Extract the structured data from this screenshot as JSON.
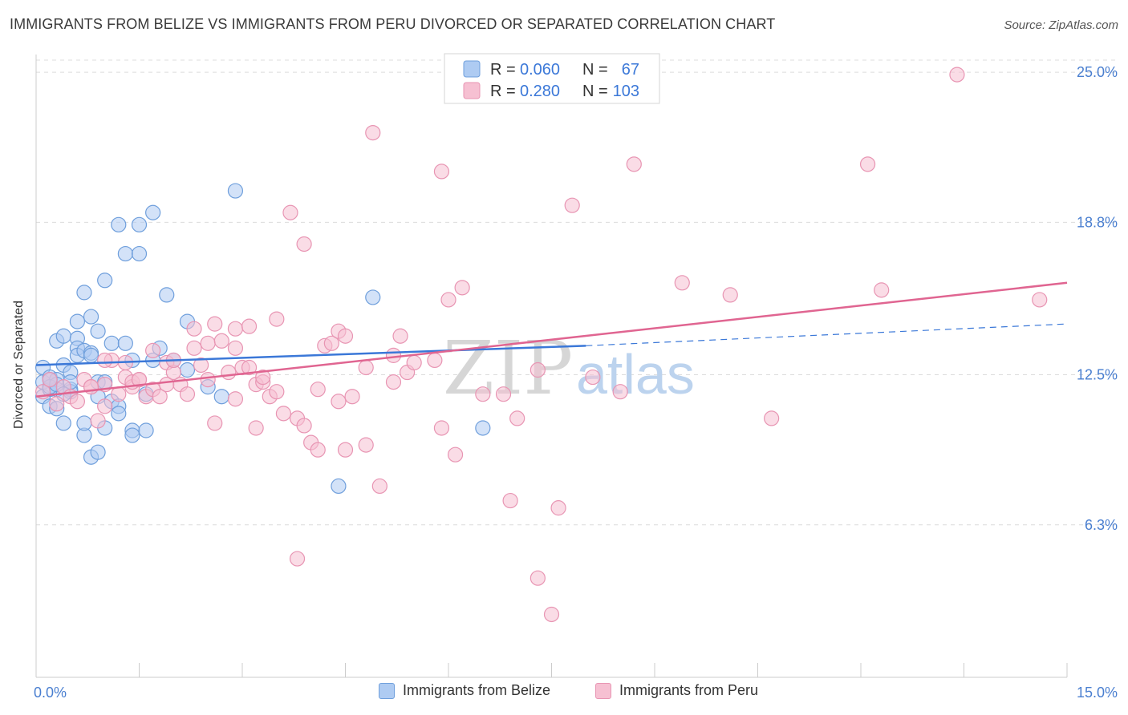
{
  "title": "IMMIGRANTS FROM BELIZE VS IMMIGRANTS FROM PERU DIVORCED OR SEPARATED CORRELATION CHART",
  "source": "Source: ZipAtlas.com",
  "watermark": {
    "zip": "ZIP",
    "atlas": "atlas"
  },
  "colors": {
    "belize_fill": "#aecbf2",
    "belize_stroke": "#6f9fdc",
    "belize_line": "#3b78d8",
    "peru_fill": "#f6c0d2",
    "peru_stroke": "#e895b3",
    "peru_line": "#e06591",
    "axis_text": "#4a7fd0",
    "grid": "#dcdcdc"
  },
  "legend_stats": [
    {
      "r_label": "R = ",
      "r_value": "0.060",
      "n_label": "N = ",
      "n_value": "67"
    },
    {
      "r_label": "R = ",
      "r_value": "0.280",
      "n_label": "N = ",
      "n_value": "103"
    }
  ],
  "chart_data": {
    "type": "scatter",
    "xlabel": "",
    "ylabel": "Divorced or Separated",
    "xlim": [
      0,
      15
    ],
    "ylim": [
      0,
      25.5
    ],
    "x_tick_labels": [
      "0.0%",
      "15.0%"
    ],
    "y_ticks": [
      6.3,
      12.5,
      18.8,
      25.0
    ],
    "y_tick_labels": [
      "6.3%",
      "12.5%",
      "18.8%",
      "25.0%"
    ],
    "grid": "horizontal dashed",
    "legend_position": "top-center",
    "series": [
      {
        "name": "Immigrants from Belize",
        "trend": {
          "x": [
            0,
            8.0
          ],
          "y": [
            12.9,
            13.7
          ],
          "dashed_to": [
            15.0,
            14.6
          ]
        },
        "points": [
          [
            0.1,
            12.8
          ],
          [
            0.1,
            12.2
          ],
          [
            0.1,
            11.6
          ],
          [
            0.2,
            11.9
          ],
          [
            0.2,
            12.4
          ],
          [
            0.2,
            11.2
          ],
          [
            0.3,
            12.3
          ],
          [
            0.3,
            11.9
          ],
          [
            0.3,
            13.9
          ],
          [
            0.3,
            11.1
          ],
          [
            0.4,
            12.9
          ],
          [
            0.4,
            14.1
          ],
          [
            0.4,
            10.5
          ],
          [
            0.5,
            12.6
          ],
          [
            0.5,
            11.9
          ],
          [
            0.5,
            11.8
          ],
          [
            0.6,
            14.0
          ],
          [
            0.6,
            13.6
          ],
          [
            0.6,
            13.3
          ],
          [
            0.6,
            14.7
          ],
          [
            0.7,
            15.9
          ],
          [
            0.7,
            13.5
          ],
          [
            0.7,
            10.0
          ],
          [
            0.7,
            10.5
          ],
          [
            0.8,
            13.4
          ],
          [
            0.8,
            13.3
          ],
          [
            0.8,
            14.9
          ],
          [
            0.8,
            9.1
          ],
          [
            0.9,
            9.3
          ],
          [
            0.9,
            12.2
          ],
          [
            0.9,
            11.6
          ],
          [
            0.9,
            14.3
          ],
          [
            1.0,
            12.2
          ],
          [
            1.0,
            16.4
          ],
          [
            1.0,
            10.3
          ],
          [
            1.1,
            13.8
          ],
          [
            1.1,
            11.4
          ],
          [
            1.2,
            11.2
          ],
          [
            1.2,
            10.9
          ],
          [
            1.3,
            13.8
          ],
          [
            1.3,
            17.5
          ],
          [
            1.2,
            18.7
          ],
          [
            1.4,
            10.2
          ],
          [
            1.4,
            13.1
          ],
          [
            1.4,
            10.0
          ],
          [
            1.5,
            17.5
          ],
          [
            1.5,
            18.7
          ],
          [
            1.6,
            11.7
          ],
          [
            1.6,
            10.2
          ],
          [
            1.7,
            19.2
          ],
          [
            1.7,
            13.1
          ],
          [
            1.8,
            13.6
          ],
          [
            1.9,
            15.8
          ],
          [
            2.0,
            13.1
          ],
          [
            2.2,
            14.7
          ],
          [
            2.2,
            12.7
          ],
          [
            2.5,
            12.0
          ],
          [
            2.7,
            11.6
          ],
          [
            2.9,
            20.1
          ],
          [
            4.4,
            7.9
          ],
          [
            4.9,
            15.7
          ],
          [
            6.5,
            10.3
          ],
          [
            0.2,
            12.0
          ],
          [
            0.3,
            12.1
          ],
          [
            0.5,
            12.2
          ],
          [
            0.2,
            12.3
          ],
          [
            0.4,
            11.7
          ]
        ]
      },
      {
        "name": "Immigrants from Peru",
        "trend": {
          "x": [
            0,
            15.0
          ],
          "y": [
            11.6,
            16.3
          ]
        },
        "points": [
          [
            0.1,
            11.8
          ],
          [
            0.2,
            12.3
          ],
          [
            0.3,
            11.3
          ],
          [
            0.4,
            12.0
          ],
          [
            0.5,
            11.6
          ],
          [
            0.6,
            11.4
          ],
          [
            0.7,
            12.3
          ],
          [
            0.8,
            12.0
          ],
          [
            0.9,
            10.6
          ],
          [
            1.0,
            12.1
          ],
          [
            1.0,
            11.2
          ],
          [
            1.1,
            13.1
          ],
          [
            1.2,
            11.7
          ],
          [
            1.3,
            13.0
          ],
          [
            1.3,
            12.4
          ],
          [
            1.4,
            12.0
          ],
          [
            1.4,
            12.2
          ],
          [
            1.5,
            12.3
          ],
          [
            1.6,
            11.6
          ],
          [
            1.7,
            11.9
          ],
          [
            1.7,
            13.5
          ],
          [
            1.8,
            11.6
          ],
          [
            1.9,
            12.1
          ],
          [
            1.9,
            13.0
          ],
          [
            2.0,
            12.6
          ],
          [
            2.0,
            13.1
          ],
          [
            2.1,
            12.1
          ],
          [
            2.2,
            11.7
          ],
          [
            2.3,
            14.4
          ],
          [
            2.3,
            13.6
          ],
          [
            2.4,
            12.9
          ],
          [
            2.5,
            13.8
          ],
          [
            2.5,
            12.3
          ],
          [
            2.6,
            10.5
          ],
          [
            2.6,
            14.6
          ],
          [
            2.7,
            13.9
          ],
          [
            2.8,
            12.6
          ],
          [
            2.9,
            14.4
          ],
          [
            2.9,
            13.6
          ],
          [
            2.9,
            11.5
          ],
          [
            3.0,
            12.8
          ],
          [
            3.1,
            12.8
          ],
          [
            3.1,
            14.5
          ],
          [
            3.2,
            12.1
          ],
          [
            3.2,
            10.3
          ],
          [
            3.3,
            12.2
          ],
          [
            3.3,
            12.4
          ],
          [
            3.4,
            11.6
          ],
          [
            3.5,
            11.8
          ],
          [
            3.5,
            14.8
          ],
          [
            3.6,
            10.9
          ],
          [
            3.7,
            19.2
          ],
          [
            3.8,
            10.7
          ],
          [
            3.9,
            17.9
          ],
          [
            3.9,
            10.4
          ],
          [
            4.0,
            9.7
          ],
          [
            4.1,
            9.4
          ],
          [
            4.1,
            11.9
          ],
          [
            4.2,
            13.7
          ],
          [
            4.3,
            13.8
          ],
          [
            4.4,
            11.4
          ],
          [
            4.4,
            14.3
          ],
          [
            4.5,
            14.1
          ],
          [
            4.5,
            9.4
          ],
          [
            4.6,
            11.6
          ],
          [
            4.8,
            12.8
          ],
          [
            4.8,
            9.6
          ],
          [
            4.9,
            22.5
          ],
          [
            5.0,
            7.9
          ],
          [
            5.2,
            13.3
          ],
          [
            5.2,
            12.2
          ],
          [
            5.3,
            14.1
          ],
          [
            5.4,
            12.6
          ],
          [
            5.5,
            13.0
          ],
          [
            5.8,
            13.1
          ],
          [
            5.9,
            10.3
          ],
          [
            5.9,
            20.9
          ],
          [
            6.0,
            15.6
          ],
          [
            6.1,
            9.2
          ],
          [
            6.2,
            16.1
          ],
          [
            6.5,
            11.7
          ],
          [
            6.8,
            11.7
          ],
          [
            6.9,
            7.3
          ],
          [
            7.0,
            10.7
          ],
          [
            7.3,
            4.1
          ],
          [
            7.3,
            12.7
          ],
          [
            7.5,
            2.6
          ],
          [
            7.6,
            7.0
          ],
          [
            7.8,
            19.5
          ],
          [
            8.1,
            12.4
          ],
          [
            8.5,
            11.8
          ],
          [
            8.7,
            21.2
          ],
          [
            9.4,
            16.3
          ],
          [
            10.1,
            15.8
          ],
          [
            10.7,
            10.7
          ],
          [
            12.1,
            21.2
          ],
          [
            12.3,
            16.0
          ],
          [
            13.4,
            24.9
          ],
          [
            14.6,
            15.6
          ],
          [
            3.8,
            4.9
          ],
          [
            0.8,
            12.0
          ],
          [
            1.0,
            13.1
          ],
          [
            1.5,
            12.3
          ]
        ]
      }
    ]
  },
  "legend_bottom": [
    {
      "label": "Immigrants from Belize"
    },
    {
      "label": "Immigrants from Peru"
    }
  ]
}
